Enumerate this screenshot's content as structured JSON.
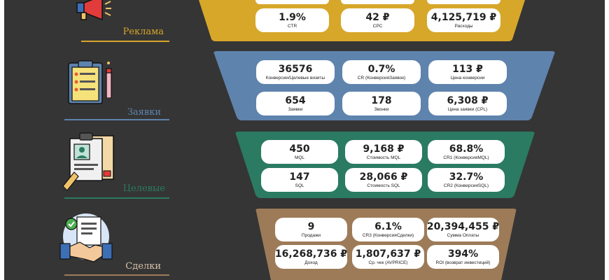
{
  "sections": [
    {
      "label": "Реклама",
      "color": "#d7a72a",
      "metrics": [
        {
          "value": "1.9%",
          "label": "CTR"
        },
        {
          "value": "42 ₽",
          "label": "CPC"
        },
        {
          "value": "4,125,719 ₽",
          "label": "Расходы"
        }
      ]
    },
    {
      "label": "Заявки",
      "color": "#5e83ad",
      "metrics": [
        {
          "value": "36576",
          "label": "Конверсии/Целевые визиты"
        },
        {
          "value": "0.7%",
          "label": "CR (КонверсияЗаявок)"
        },
        {
          "value": "113 ₽",
          "label": "Цена конверсии"
        },
        {
          "value": "654",
          "label": "Заявки"
        },
        {
          "value": "178",
          "label": "Звонки"
        },
        {
          "value": "6,308 ₽",
          "label": "Цена заявки (CPL)"
        }
      ]
    },
    {
      "label": "Целевые",
      "color": "#2b7a62",
      "metrics": [
        {
          "value": "450",
          "label": "MQL"
        },
        {
          "value": "9,168 ₽",
          "label": "Стоимость MQL"
        },
        {
          "value": "68.8%",
          "label": "CR1 (КонверсияMQL)"
        },
        {
          "value": "147",
          "label": "SQL"
        },
        {
          "value": "28,066 ₽",
          "label": "Стоимость SQL"
        },
        {
          "value": "32.7%",
          "label": "CR2 (КонверсияSQL)"
        }
      ]
    },
    {
      "label": "Сделки",
      "color": "#9d7b58",
      "metrics": [
        {
          "value": "9",
          "label": "Продажи"
        },
        {
          "value": "6.1%",
          "label": "CR3 (КонверсияСделки)"
        },
        {
          "value": "20,394,455 ₽",
          "label": "Сумма Оплаты"
        },
        {
          "value": "16,268,736 ₽",
          "label": "Доход"
        },
        {
          "value": "1,807,637 ₽",
          "label": "Ср. чек (AVPRICE)"
        },
        {
          "value": "394%",
          "label": "ROI (возврат инвестиций)"
        }
      ]
    }
  ],
  "icons": [
    "megaphone-icon",
    "clipboard-checklist-icon",
    "id-card-document-icon",
    "handshake-contract-icon"
  ]
}
